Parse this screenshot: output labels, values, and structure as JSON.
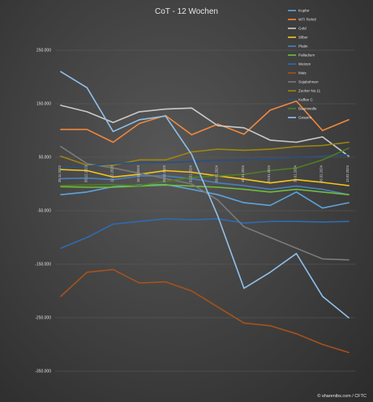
{
  "chart_data": {
    "type": "line",
    "title": "CoT - 12 Wochen",
    "xlabel": "",
    "ylabel": "",
    "ylim": [
      -350000,
      250000
    ],
    "y_ticks": [
      "250.000",
      "150.000",
      "50.000",
      "-50.000",
      "-150.000",
      "-250.000",
      "-350.000"
    ],
    "y_tick_values": [
      250000,
      150000,
      50000,
      -50000,
      -150000,
      -250000,
      -350000
    ],
    "x": [
      "28.11.2023",
      "05.12.2023",
      "12.12.2023",
      "19.12.2023",
      "26.12.2023",
      "02.01.2024",
      "09.01.2024",
      "16.01.2024",
      "23.01.2024",
      "30.01.2024",
      "06.02.2024",
      "13.02.2024"
    ],
    "grid": true,
    "legend_position": "right",
    "series": [
      {
        "name": "Kupfer",
        "color": "#5ea3dc",
        "values": [
          -20000,
          -15000,
          -5000,
          -2000,
          -1000,
          -10000,
          -20000,
          -35000,
          -40000,
          -15000,
          -45000,
          -35000
        ]
      },
      {
        "name": "WTI Rohöl",
        "color": "#f0883c",
        "values": [
          102000,
          102000,
          78000,
          113000,
          128000,
          92000,
          112000,
          93000,
          138000,
          155000,
          100000,
          120000
        ]
      },
      {
        "name": "Gold",
        "color": "#c9c9c9",
        "values": [
          147000,
          135000,
          115000,
          135000,
          140000,
          142000,
          109000,
          105000,
          82000,
          78000,
          88000,
          52000
        ]
      },
      {
        "name": "Silber",
        "color": "#f5c518",
        "values": [
          27000,
          25000,
          13000,
          18000,
          25000,
          22000,
          15000,
          9000,
          2000,
          8000,
          3000,
          -3000
        ]
      },
      {
        "name": "Platin",
        "color": "#4a7fbf",
        "values": [
          10000,
          11000,
          8000,
          15000,
          15000,
          10000,
          2000,
          -3000,
          -10000,
          -4000,
          -10000,
          -20000
        ]
      },
      {
        "name": "Palladium",
        "color": "#6fbd3b",
        "values": [
          -5000,
          -6000,
          -6000,
          -4000,
          -2000,
          -4000,
          -6000,
          -10000,
          -15000,
          -10000,
          -15000,
          -20000
        ]
      },
      {
        "name": "Weizen",
        "color": "#2e6bb3",
        "values": [
          -120000,
          -100000,
          -75000,
          -70000,
          -65000,
          -67000,
          -65000,
          -73000,
          -70000,
          -70000,
          -71000,
          -70000
        ]
      },
      {
        "name": "Mais",
        "color": "#a5521c",
        "values": [
          -210000,
          -165000,
          -160000,
          -185000,
          -183000,
          -200000,
          -230000,
          -260000,
          -265000,
          -280000,
          -300000,
          -315000
        ]
      },
      {
        "name": "Sojabohnen",
        "color": "#7a7a7a",
        "values": [
          70000,
          38000,
          30000,
          20000,
          10000,
          0,
          -30000,
          -80000,
          -100000,
          -120000,
          -140000,
          -142000
        ]
      },
      {
        "name": "Zucker No.11",
        "color": "#9c8610",
        "values": [
          52000,
          35000,
          35000,
          45000,
          45000,
          60000,
          65000,
          63000,
          65000,
          70000,
          72000,
          78000
        ]
      },
      {
        "name": "Kaffee C",
        "color": "#2a4f82",
        "values": [
          30000,
          33000,
          38000,
          40000,
          40000,
          42000,
          44000,
          45000,
          47000,
          50000,
          52000,
          55000
        ]
      },
      {
        "name": "Baumwolle",
        "color": "#4f7d24",
        "values": [
          -3000,
          -2000,
          -1000,
          -3000,
          5000,
          12000,
          15000,
          18000,
          25000,
          30000,
          45000,
          67000
        ]
      },
      {
        "name": "Gesamt",
        "color": "#8fc0ea",
        "values": [
          210000,
          180000,
          98000,
          120000,
          127000,
          55000,
          -60000,
          -195000,
          -165000,
          -130000,
          -210000,
          -250000
        ]
      }
    ]
  },
  "watermark": "© sharenibs.com / CFTC"
}
